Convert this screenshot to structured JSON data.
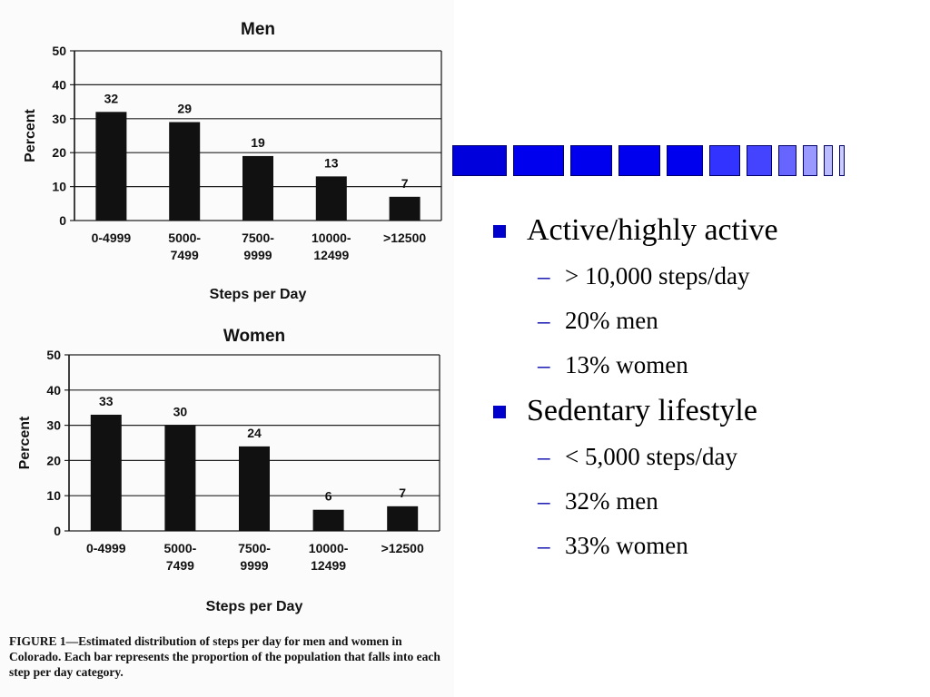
{
  "chart_data": [
    {
      "type": "bar",
      "title": "Men",
      "xlabel": "Steps per Day",
      "ylabel": "Percent",
      "categories": [
        "0-4999",
        "5000-\n7499",
        "7500-\n9999",
        "10000-\n12499",
        ">12500"
      ],
      "values": [
        32,
        29,
        19,
        13,
        7
      ],
      "ylim": [
        0,
        50
      ],
      "yticks": [
        0,
        10,
        20,
        30,
        40,
        50
      ],
      "grid": true
    },
    {
      "type": "bar",
      "title": "Women",
      "xlabel": "Steps per Day",
      "ylabel": "Percent",
      "categories": [
        "0-4999",
        "5000-\n7499",
        "7500-\n9999",
        "10000-\n12499",
        ">12500"
      ],
      "values": [
        33,
        30,
        24,
        6,
        7
      ],
      "ylim": [
        0,
        50
      ],
      "yticks": [
        0,
        10,
        20,
        30,
        40,
        50
      ],
      "grid": true
    }
  ],
  "caption": {
    "label": "FIGURE 1",
    "text": "—Estimated distribution of steps per day for men and women in Colorado. Each bar represents the proportion of the population that falls into each step per day category."
  },
  "decor": {
    "square_colors": [
      "#0000dd",
      "#0000ee",
      "#0000ee",
      "#0000ee",
      "#0000ee",
      "#3333ff",
      "#4444ff",
      "#6666ff",
      "#9999ff",
      "#bbbbff",
      "#ccccff"
    ]
  },
  "bullets": [
    {
      "text": "Active/highly active",
      "subs": [
        "> 10,000 steps/day",
        "20% men",
        "13% women"
      ]
    },
    {
      "text": "Sedentary lifestyle",
      "subs": [
        "< 5,000 steps/day",
        "32% men",
        "33% women"
      ]
    }
  ],
  "colors": {
    "bar": "#111111",
    "bullet": "#0000cc"
  }
}
